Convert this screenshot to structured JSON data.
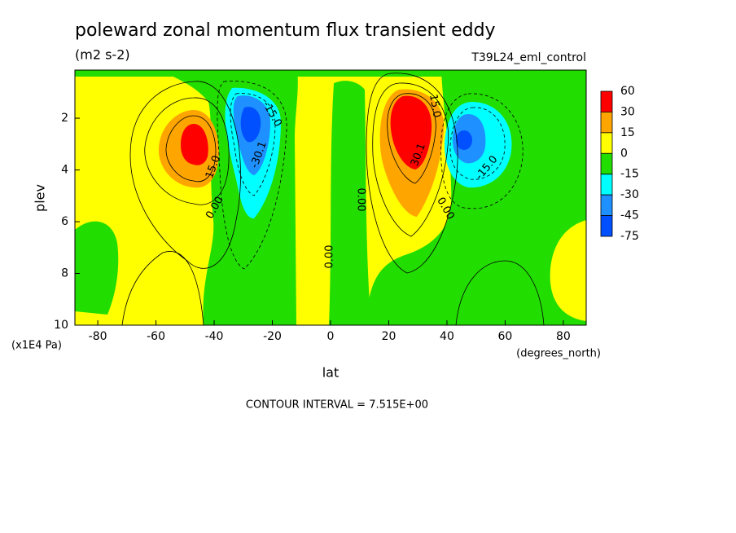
{
  "chart_data": {
    "type": "contour",
    "title": "poleward zonal momentum flux transient eddy",
    "subtitle": "(m2 s-2)",
    "dataset": "T39L24_eml_control",
    "x_label": "lat",
    "x_units": "(degrees_north)",
    "y_label": "plev",
    "y_units": "(x1E4 Pa)",
    "footnote": "CONTOUR INTERVAL = 7.515E+00",
    "xlim": [
      -87.86,
      87.86
    ],
    "xticks": [
      -80,
      -60,
      -40,
      -20,
      0,
      20,
      40,
      60,
      80
    ],
    "ylim": [
      10,
      0.14
    ],
    "yticks": [
      2,
      4,
      6,
      8,
      10
    ],
    "levels": [
      60,
      30,
      15,
      0,
      -15,
      -30,
      -45,
      -75
    ],
    "colors": [
      "#ff0000",
      "#ffa500",
      "#ffff00",
      "#22dd00",
      "#00ffff",
      "#1e90ff",
      "#0050ff"
    ],
    "contour_labels": [
      "15.0",
      "-15.0",
      "-30.1",
      "0.00",
      "0.00",
      "0.00",
      "15.0",
      "30.1",
      "0.00",
      "-15.0"
    ]
  }
}
